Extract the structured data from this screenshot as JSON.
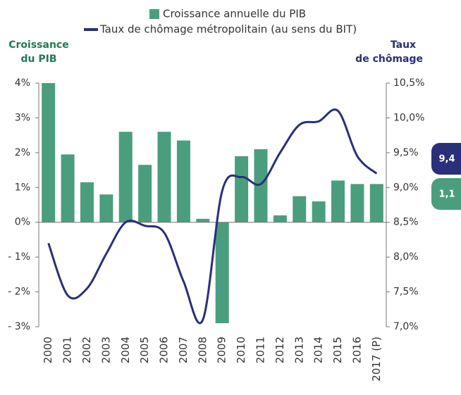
{
  "chart_data": {
    "type": "combo",
    "legend": "top",
    "y_label_lines": [
      "Croissance",
      "du PIB"
    ],
    "y2_label_lines": [
      "Taux",
      "de chômage"
    ],
    "categories": [
      "2000",
      "2001",
      "2002",
      "2003",
      "2004",
      "2005",
      "2006",
      "2007",
      "2008",
      "2009",
      "2010",
      "2011",
      "2012",
      "2013",
      "2014",
      "2015",
      "2016",
      "2017 (P)"
    ],
    "series": [
      {
        "name": "Croissance annuelle du PIB",
        "type": "bar",
        "color": "#4a9e7e",
        "values": [
          4.0,
          1.95,
          1.15,
          0.8,
          2.6,
          1.65,
          2.6,
          2.35,
          0.1,
          -2.9,
          1.9,
          2.1,
          0.2,
          0.75,
          0.6,
          1.2,
          1.1,
          1.1
        ]
      },
      {
        "name": "Taux de chômage métropolitain (au sens du BIT)",
        "type": "line",
        "color": "#2a2f7a",
        "axis": "y2",
        "values": [
          8.2,
          7.45,
          7.55,
          8.05,
          8.5,
          8.45,
          8.35,
          7.65,
          7.1,
          8.95,
          9.15,
          9.05,
          9.5,
          9.9,
          9.95,
          10.1,
          9.45,
          9.2
        ]
      }
    ],
    "ylim": [
      -3,
      4
    ],
    "yticks": [
      {
        "value": 4,
        "label": "4%"
      },
      {
        "value": 3,
        "label": "3%"
      },
      {
        "value": 2,
        "label": "2%"
      },
      {
        "value": 1,
        "label": "1%"
      },
      {
        "value": 0,
        "label": "0%"
      },
      {
        "value": -1,
        "label": "- 1%"
      },
      {
        "value": -2,
        "label": "- 2%"
      },
      {
        "value": -3,
        "label": "- 3%"
      }
    ],
    "y2lim": [
      7.0,
      10.5
    ],
    "y2ticks": [
      {
        "value": 10.5,
        "label": "10,5%"
      },
      {
        "value": 10,
        "label": "10,0%"
      },
      {
        "value": 9.5,
        "label": "9,5%"
      },
      {
        "value": 9,
        "label": "9,0%"
      },
      {
        "value": 8.5,
        "label": "8,5%"
      },
      {
        "value": 8,
        "label": "8,0%"
      },
      {
        "value": 7.5,
        "label": "7,5%"
      },
      {
        "value": 7,
        "label": "7,0%"
      }
    ],
    "annotations": [
      {
        "text": "9,4",
        "color": "#2a2f7a"
      },
      {
        "text": "1,1",
        "color": "#4a9e7e"
      }
    ]
  }
}
